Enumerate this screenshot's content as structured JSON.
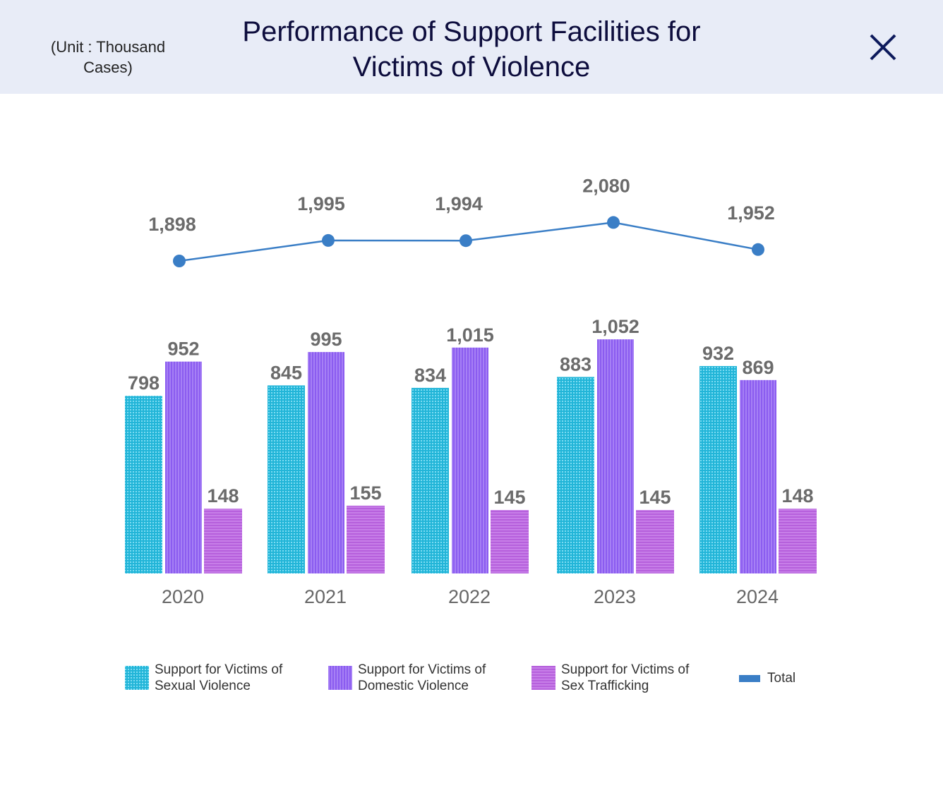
{
  "header": {
    "unit": "(Unit : Thousand Cases)",
    "title": "Performance of Support Facilities for Victims of Violence",
    "close_icon": "close-x-icon"
  },
  "chart_data": {
    "type": "bar+line",
    "title": "Performance of Support Facilities for Victims of Violence",
    "unit": "(Unit : Thousand Cases)",
    "categories": [
      "2020",
      "2021",
      "2022",
      "2023",
      "2024"
    ],
    "series": [
      {
        "name": "Support for Victims of Sexual Violence",
        "type": "bar",
        "color": "#22b5d8",
        "values": [
          798,
          845,
          834,
          883,
          932
        ],
        "labels": [
          "798",
          "845",
          "834",
          "883",
          "932"
        ]
      },
      {
        "name": "Support for Victims of Domestic Violence",
        "type": "bar",
        "color": "#8b5cf0",
        "values": [
          952,
          995,
          1015,
          1052,
          869
        ],
        "labels": [
          "952",
          "995",
          "1,015",
          "1,052",
          "869"
        ]
      },
      {
        "name": "Support for Victims of Sex Trafficking",
        "type": "bar",
        "color": "#c278e6",
        "values": [
          148,
          155,
          145,
          145,
          148
        ],
        "labels": [
          "148",
          "155",
          "145",
          "145",
          "148"
        ]
      },
      {
        "name": "Total",
        "type": "line",
        "color": "#3a7ec6",
        "values": [
          1898,
          1995,
          1994,
          2080,
          1952
        ],
        "labels": [
          "1,898",
          "1,995",
          "1,994",
          "2,080",
          "1,952"
        ]
      }
    ],
    "legend_position": "bottom",
    "grid": false
  }
}
